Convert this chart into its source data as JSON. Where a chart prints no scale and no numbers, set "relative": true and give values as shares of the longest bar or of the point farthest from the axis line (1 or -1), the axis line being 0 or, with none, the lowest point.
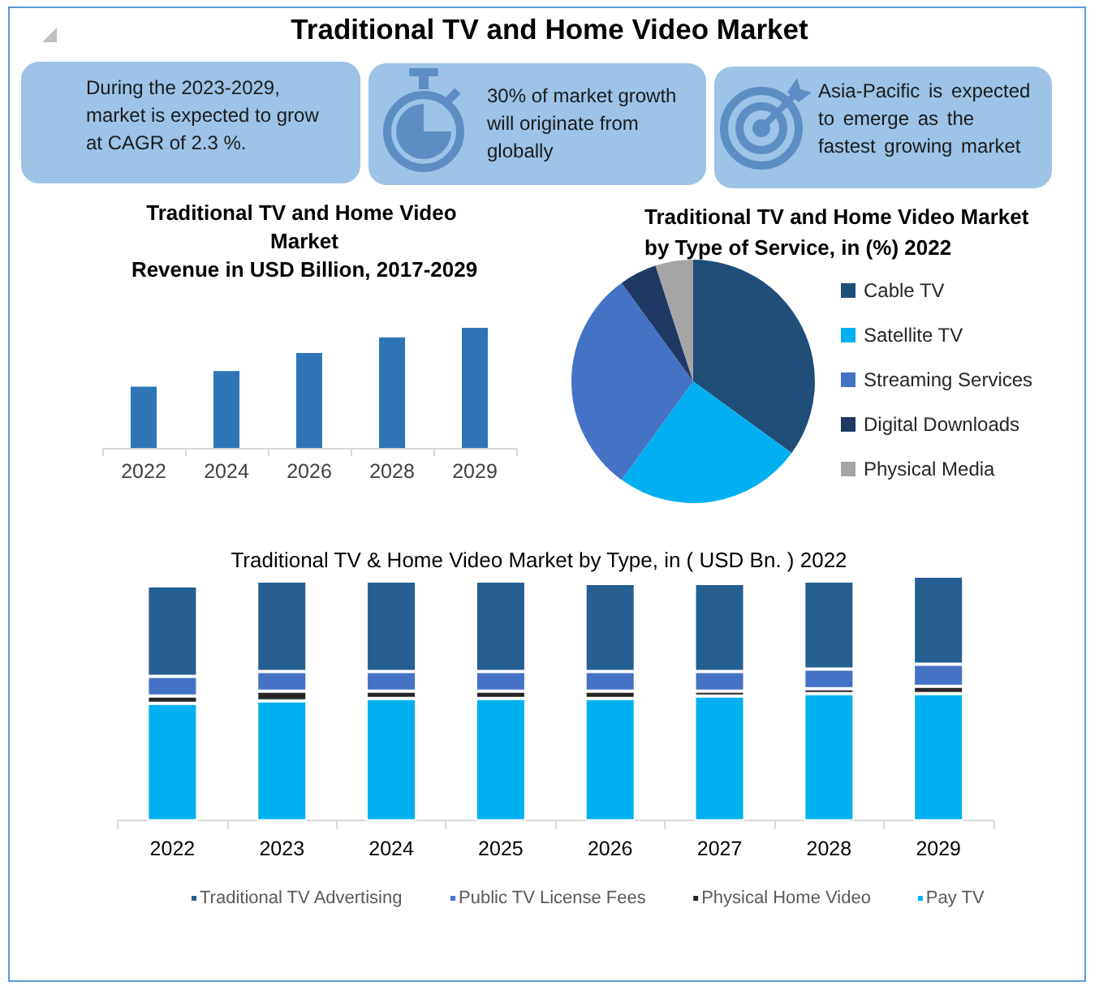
{
  "chart_data": [
    {
      "type": "other",
      "title": "Traditional TV and Home Video Market",
      "annotations": [
        "During the 2023-2029, market is expected to grow at CAGR of 2.3 %.",
        "30% of market growth will originate from globally",
        "Asia-Pacific is expected to emerge as the fastest growing market"
      ]
    },
    {
      "type": "bar",
      "title": "Traditional TV and Home Video Market",
      "subtitle": "Revenue in USD Billion, 2017-2029",
      "categories": [
        "2022",
        "2024",
        "2026",
        "2028",
        "2029"
      ],
      "values": [
        0.51,
        0.64,
        0.79,
        0.92,
        1
      ],
      "color": "#2e75b6",
      "relative": true
    },
    {
      "type": "pie",
      "title": "Traditional TV and Home Video Market by Type of Service, in (%) 2022",
      "categories": [
        "Cable TV",
        "Satellite TV",
        "Streaming Services",
        "Digital Downloads",
        "Physical Media"
      ],
      "values": [
        35,
        25,
        30,
        5,
        5
      ],
      "colors": [
        "#1f4e79",
        "#00b0f0",
        "#4472c4",
        "#203864",
        "#a5a5a5"
      ],
      "legend": "right"
    },
    {
      "type": "bar",
      "title": "Traditional TV & Home Video Market by Type, in ( USD Bn. ) 2022",
      "categories": [
        "2022",
        "2023",
        "2024",
        "2025",
        "2026",
        "2027",
        "2028",
        "2029"
      ],
      "series": [
        {
          "name": "Pay TV",
          "color": "#00b0f0",
          "values": [
            0.48,
            0.49,
            0.5,
            0.5,
            0.5,
            0.51,
            0.52,
            0.52
          ]
        },
        {
          "name": "Physical Home Video",
          "color": "#262626",
          "values": [
            0.03,
            0.04,
            0.03,
            0.03,
            0.03,
            0.02,
            0.02,
            0.03
          ]
        },
        {
          "name": "Public TV License Fees",
          "color": "#4472c4",
          "values": [
            0.08,
            0.08,
            0.08,
            0.08,
            0.08,
            0.08,
            0.08,
            0.09
          ]
        },
        {
          "name": "Traditional TV Advertising",
          "color": "#255e91",
          "values": [
            0.37,
            0.37,
            0.37,
            0.37,
            0.36,
            0.36,
            0.36,
            0.36
          ]
        }
      ],
      "stacked": true,
      "relative": true,
      "legend": "bottom"
    }
  ]
}
